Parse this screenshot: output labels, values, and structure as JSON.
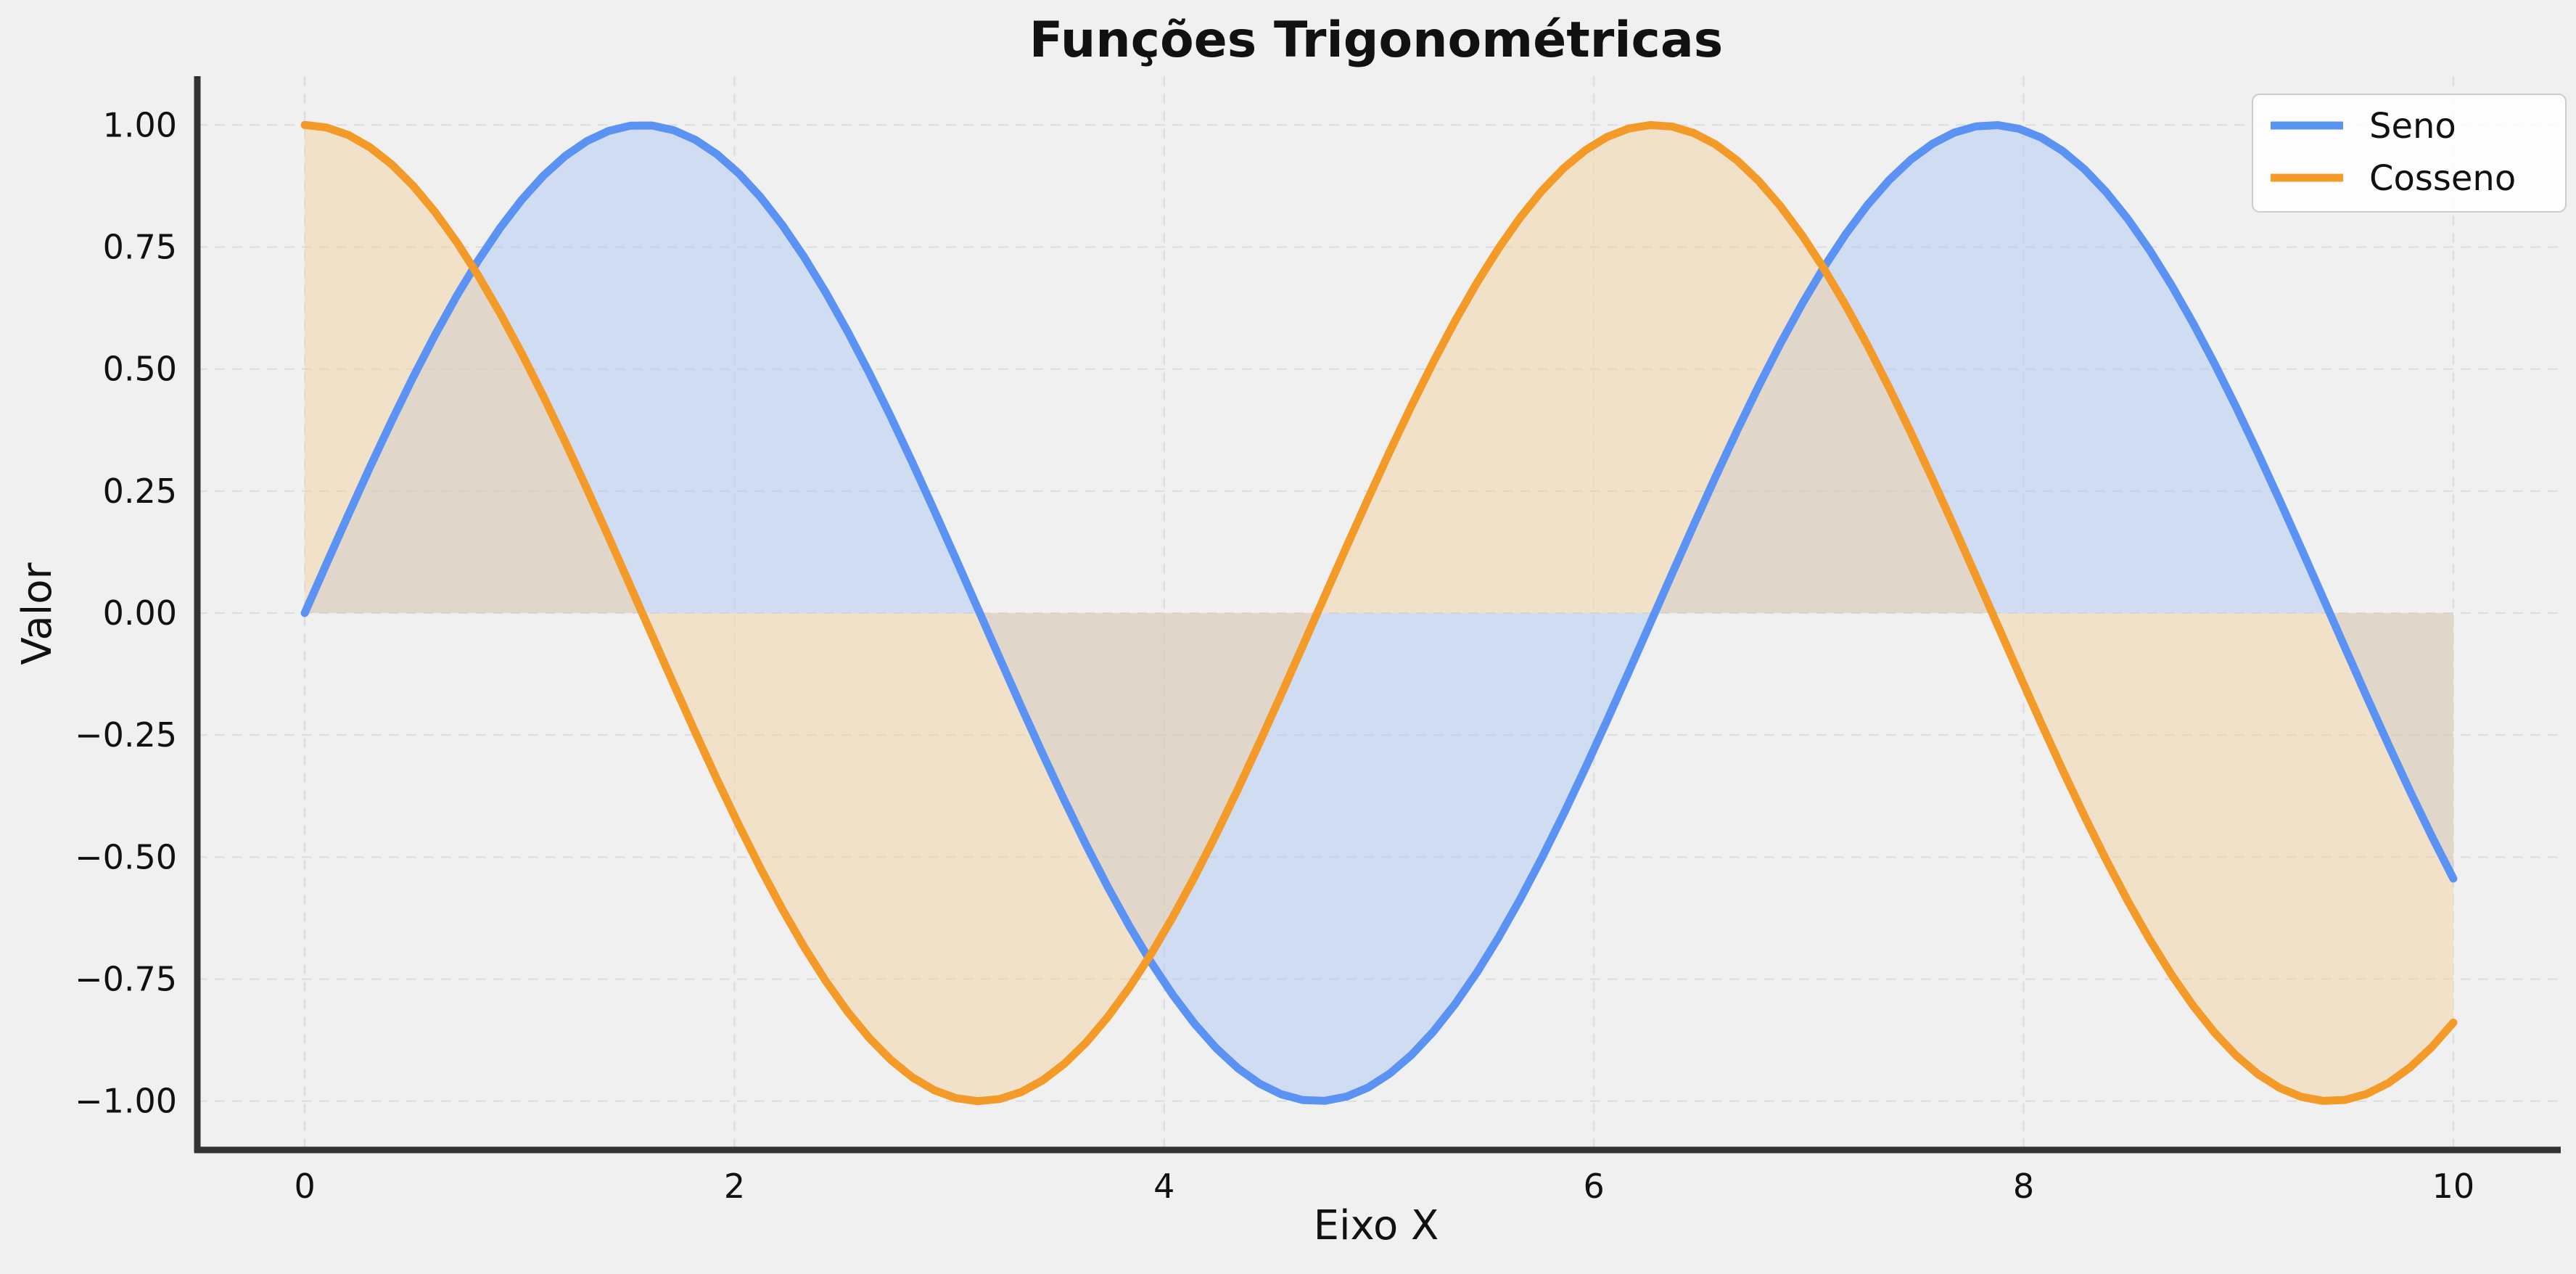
{
  "chart_data": {
    "type": "line",
    "title": "Funções Trigonométricas",
    "xlabel": "Eixo X",
    "ylabel": "Valor",
    "xlim": [
      -0.5,
      10.5
    ],
    "ylim": [
      -1.1,
      1.1
    ],
    "x_ticks": [
      0,
      2,
      4,
      6,
      8,
      10
    ],
    "x_tick_labels": [
      "0",
      "2",
      "4",
      "6",
      "8",
      "10"
    ],
    "y_ticks": [
      1.0,
      0.75,
      0.5,
      0.25,
      0.0,
      -0.25,
      -0.5,
      -0.75,
      -1.0
    ],
    "y_tick_labels": [
      "1.00",
      "0.75",
      "0.50",
      "0.25",
      "0.00",
      "−0.25",
      "−0.50",
      "−0.75",
      "−1.00"
    ],
    "grid": true,
    "legend_position": "top-right",
    "x_range": [
      0,
      10
    ],
    "num_points": 100,
    "series": [
      {
        "name": "Seno",
        "function": "sin(x)",
        "color": "#5b93f5",
        "fill_color": "#a9c4f5",
        "fill_to": 0
      },
      {
        "name": "Cosseno",
        "function": "cos(x)",
        "color": "#f39a28",
        "fill_color": "#f3cf98",
        "fill_to": 0
      }
    ]
  },
  "colors": {
    "background": "#f0f0f0",
    "axis": "#333333",
    "grid": "#dcdcdc"
  }
}
